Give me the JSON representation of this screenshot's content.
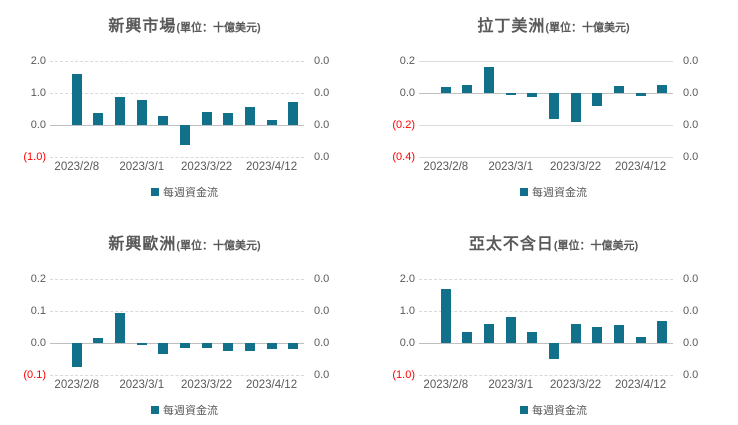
{
  "meta": {
    "background": "#ffffff",
    "bar_color": "#12718a",
    "tick_color": "#595959",
    "negative_tick_color": "#ff0000",
    "grid_color": "#d9d9d9",
    "zero_line_color": "#bfbfbf",
    "legend_swatch_icon": "filled-square"
  },
  "chart_data": [
    {
      "type": "bar",
      "title": "新興市場",
      "title_unit": "(單位：十億美元)",
      "legend": "每週資金流",
      "legend_position": "bottom",
      "series": [
        {
          "name": "每週資金流",
          "values": [
            1.6,
            0.38,
            0.86,
            0.79,
            0.28,
            -0.62,
            0.42,
            0.38,
            0.57,
            0.17,
            0.73
          ]
        }
      ],
      "x_tick_labels": [
        "2023/2/8",
        "2023/3/1",
        "2023/3/22",
        "2023/4/12"
      ],
      "x_tick_positions": [
        0,
        3,
        6,
        9
      ],
      "left_axis_ticks": [
        "2.0",
        "1.0",
        "0.0",
        "(1.0)"
      ],
      "right_axis_ticks": [
        "0.0",
        "0.0",
        "0.0",
        "0.0"
      ],
      "ylim": [
        -1.0,
        2.0
      ],
      "grid": "dashed"
    },
    {
      "type": "bar",
      "title": "拉丁美洲",
      "title_unit": "(單位：十億美元)",
      "legend": "每週資金流",
      "legend_position": "bottom",
      "series": [
        {
          "name": "每週資金流",
          "values": [
            0.04,
            0.05,
            0.16,
            -0.015,
            -0.025,
            -0.16,
            -0.18,
            -0.08,
            0.045,
            -0.02,
            0.05
          ]
        }
      ],
      "x_tick_labels": [
        "2023/2/8",
        "2023/3/1",
        "2023/3/22",
        "2023/4/12"
      ],
      "x_tick_positions": [
        0,
        3,
        6,
        9
      ],
      "left_axis_ticks": [
        "0.2",
        "0.0",
        "(0.2)",
        "(0.4)"
      ],
      "right_axis_ticks": [
        "0.0",
        "0.0",
        "0.0",
        "0.0"
      ],
      "ylim": [
        -0.4,
        0.2
      ],
      "grid": "solid"
    },
    {
      "type": "bar",
      "title": "新興歐洲",
      "title_unit": "(單位：十億美元)",
      "legend": "每週資金流",
      "legend_position": "bottom",
      "series": [
        {
          "name": "每週資金流",
          "values": [
            -0.075,
            0.015,
            0.095,
            -0.005,
            -0.035,
            -0.015,
            -0.015,
            -0.025,
            -0.025,
            -0.02,
            -0.02
          ]
        }
      ],
      "x_tick_labels": [
        "2023/2/8",
        "2023/3/1",
        "2023/3/22",
        "2023/4/12"
      ],
      "x_tick_positions": [
        0,
        3,
        6,
        9
      ],
      "left_axis_ticks": [
        "0.2",
        "0.1",
        "0.0",
        "(0.1)"
      ],
      "right_axis_ticks": [
        "0.0",
        "0.0",
        "0.0",
        "0.0"
      ],
      "ylim": [
        -0.1,
        0.2
      ],
      "grid": "dashed"
    },
    {
      "type": "bar",
      "title": "亞太不含日",
      "title_unit": "(單位：十億美元)",
      "legend": "每週資金流",
      "legend_position": "bottom",
      "series": [
        {
          "name": "每週資金流",
          "values": [
            1.7,
            0.35,
            0.6,
            0.8,
            0.35,
            -0.5,
            0.6,
            0.5,
            0.57,
            0.2,
            0.7
          ]
        }
      ],
      "x_tick_labels": [
        "2023/2/8",
        "2023/3/1",
        "2023/3/22",
        "2023/4/12"
      ],
      "x_tick_positions": [
        0,
        3,
        6,
        9
      ],
      "left_axis_ticks": [
        "2.0",
        "1.0",
        "0.0",
        "(1.0)"
      ],
      "right_axis_ticks": [
        "0.0",
        "0.0",
        "0.0",
        "0.0"
      ],
      "ylim": [
        -1.0,
        2.0
      ],
      "grid": "dashed"
    }
  ]
}
